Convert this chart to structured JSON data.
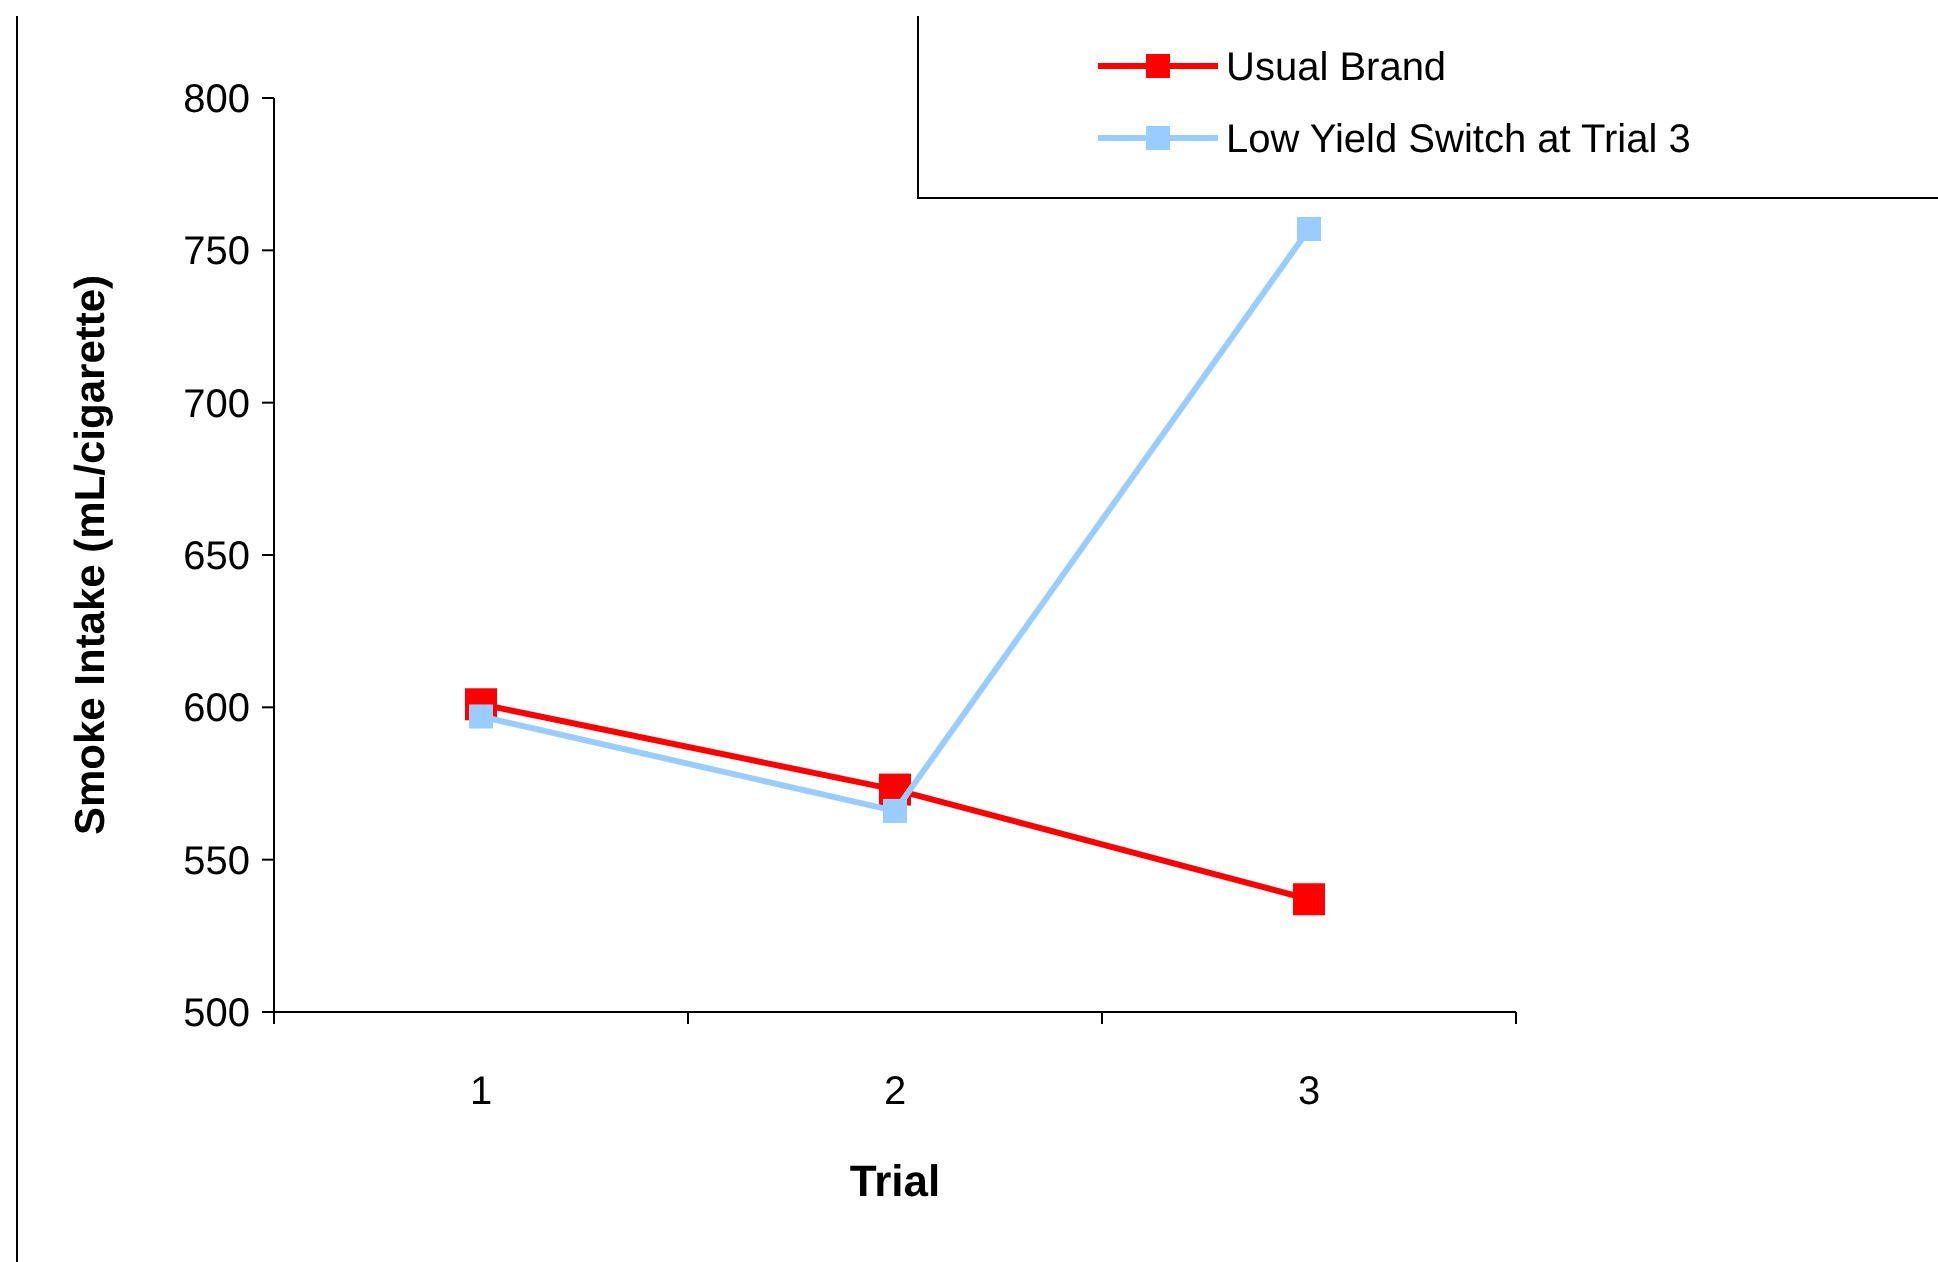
{
  "chart_data": {
    "type": "line",
    "xlabel": "Trial",
    "ylabel": "Smoke Intake (mL/cigarette)",
    "categories": [
      "1",
      "2",
      "3"
    ],
    "series": [
      {
        "name": "Usual Brand",
        "color": "#ff0000",
        "values": [
          601,
          573,
          537
        ]
      },
      {
        "name": "Low Yield Switch at Trial 3",
        "color": "#99ccff",
        "values": [
          597,
          566,
          757
        ]
      }
    ],
    "ylim": [
      500,
      800
    ],
    "yticks": [
      500,
      550,
      600,
      650,
      700,
      750,
      800
    ],
    "grid": false,
    "legend": "top right",
    "marker": "square",
    "line_style": "solid"
  }
}
